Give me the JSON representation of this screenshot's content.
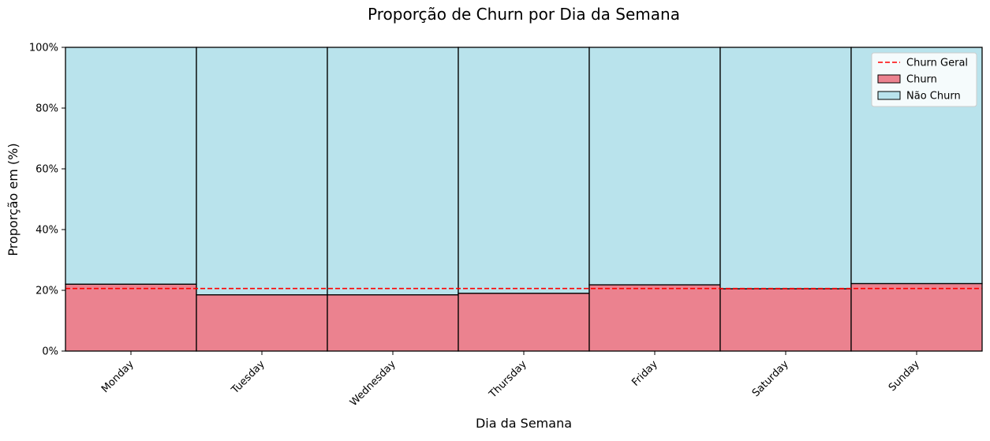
{
  "chart_data": {
    "type": "bar",
    "stacked": true,
    "title": "Proporção de Churn por Dia da Semana",
    "xlabel": "Dia da Semana",
    "ylabel": "Proporção em (%)",
    "categories": [
      "Monday",
      "Tuesday",
      "Wednesday",
      "Thursday",
      "Friday",
      "Saturday",
      "Sunday"
    ],
    "ylim": [
      0,
      100
    ],
    "y_ticks": [
      {
        "value": 0,
        "label": "0%"
      },
      {
        "value": 20,
        "label": "20%"
      },
      {
        "value": 40,
        "label": "40%"
      },
      {
        "value": 60,
        "label": "60%"
      },
      {
        "value": 80,
        "label": "80%"
      },
      {
        "value": 100,
        "label": "100%"
      }
    ],
    "series": [
      {
        "name": "Churn",
        "color": "#eb828f",
        "values": [
          22.0,
          18.5,
          18.5,
          19.0,
          21.8,
          20.5,
          22.2
        ]
      },
      {
        "name": "Não Churn",
        "color": "#b9e3ec",
        "values": [
          78.0,
          81.5,
          81.5,
          81.0,
          78.2,
          79.5,
          77.8
        ]
      }
    ],
    "reference_line": {
      "name": "Churn Geral",
      "value": 20.6,
      "color": "#ff0000",
      "style": "dashed"
    },
    "legend_position": "top-right",
    "x_tick_rotation": 45,
    "grid": false
  }
}
